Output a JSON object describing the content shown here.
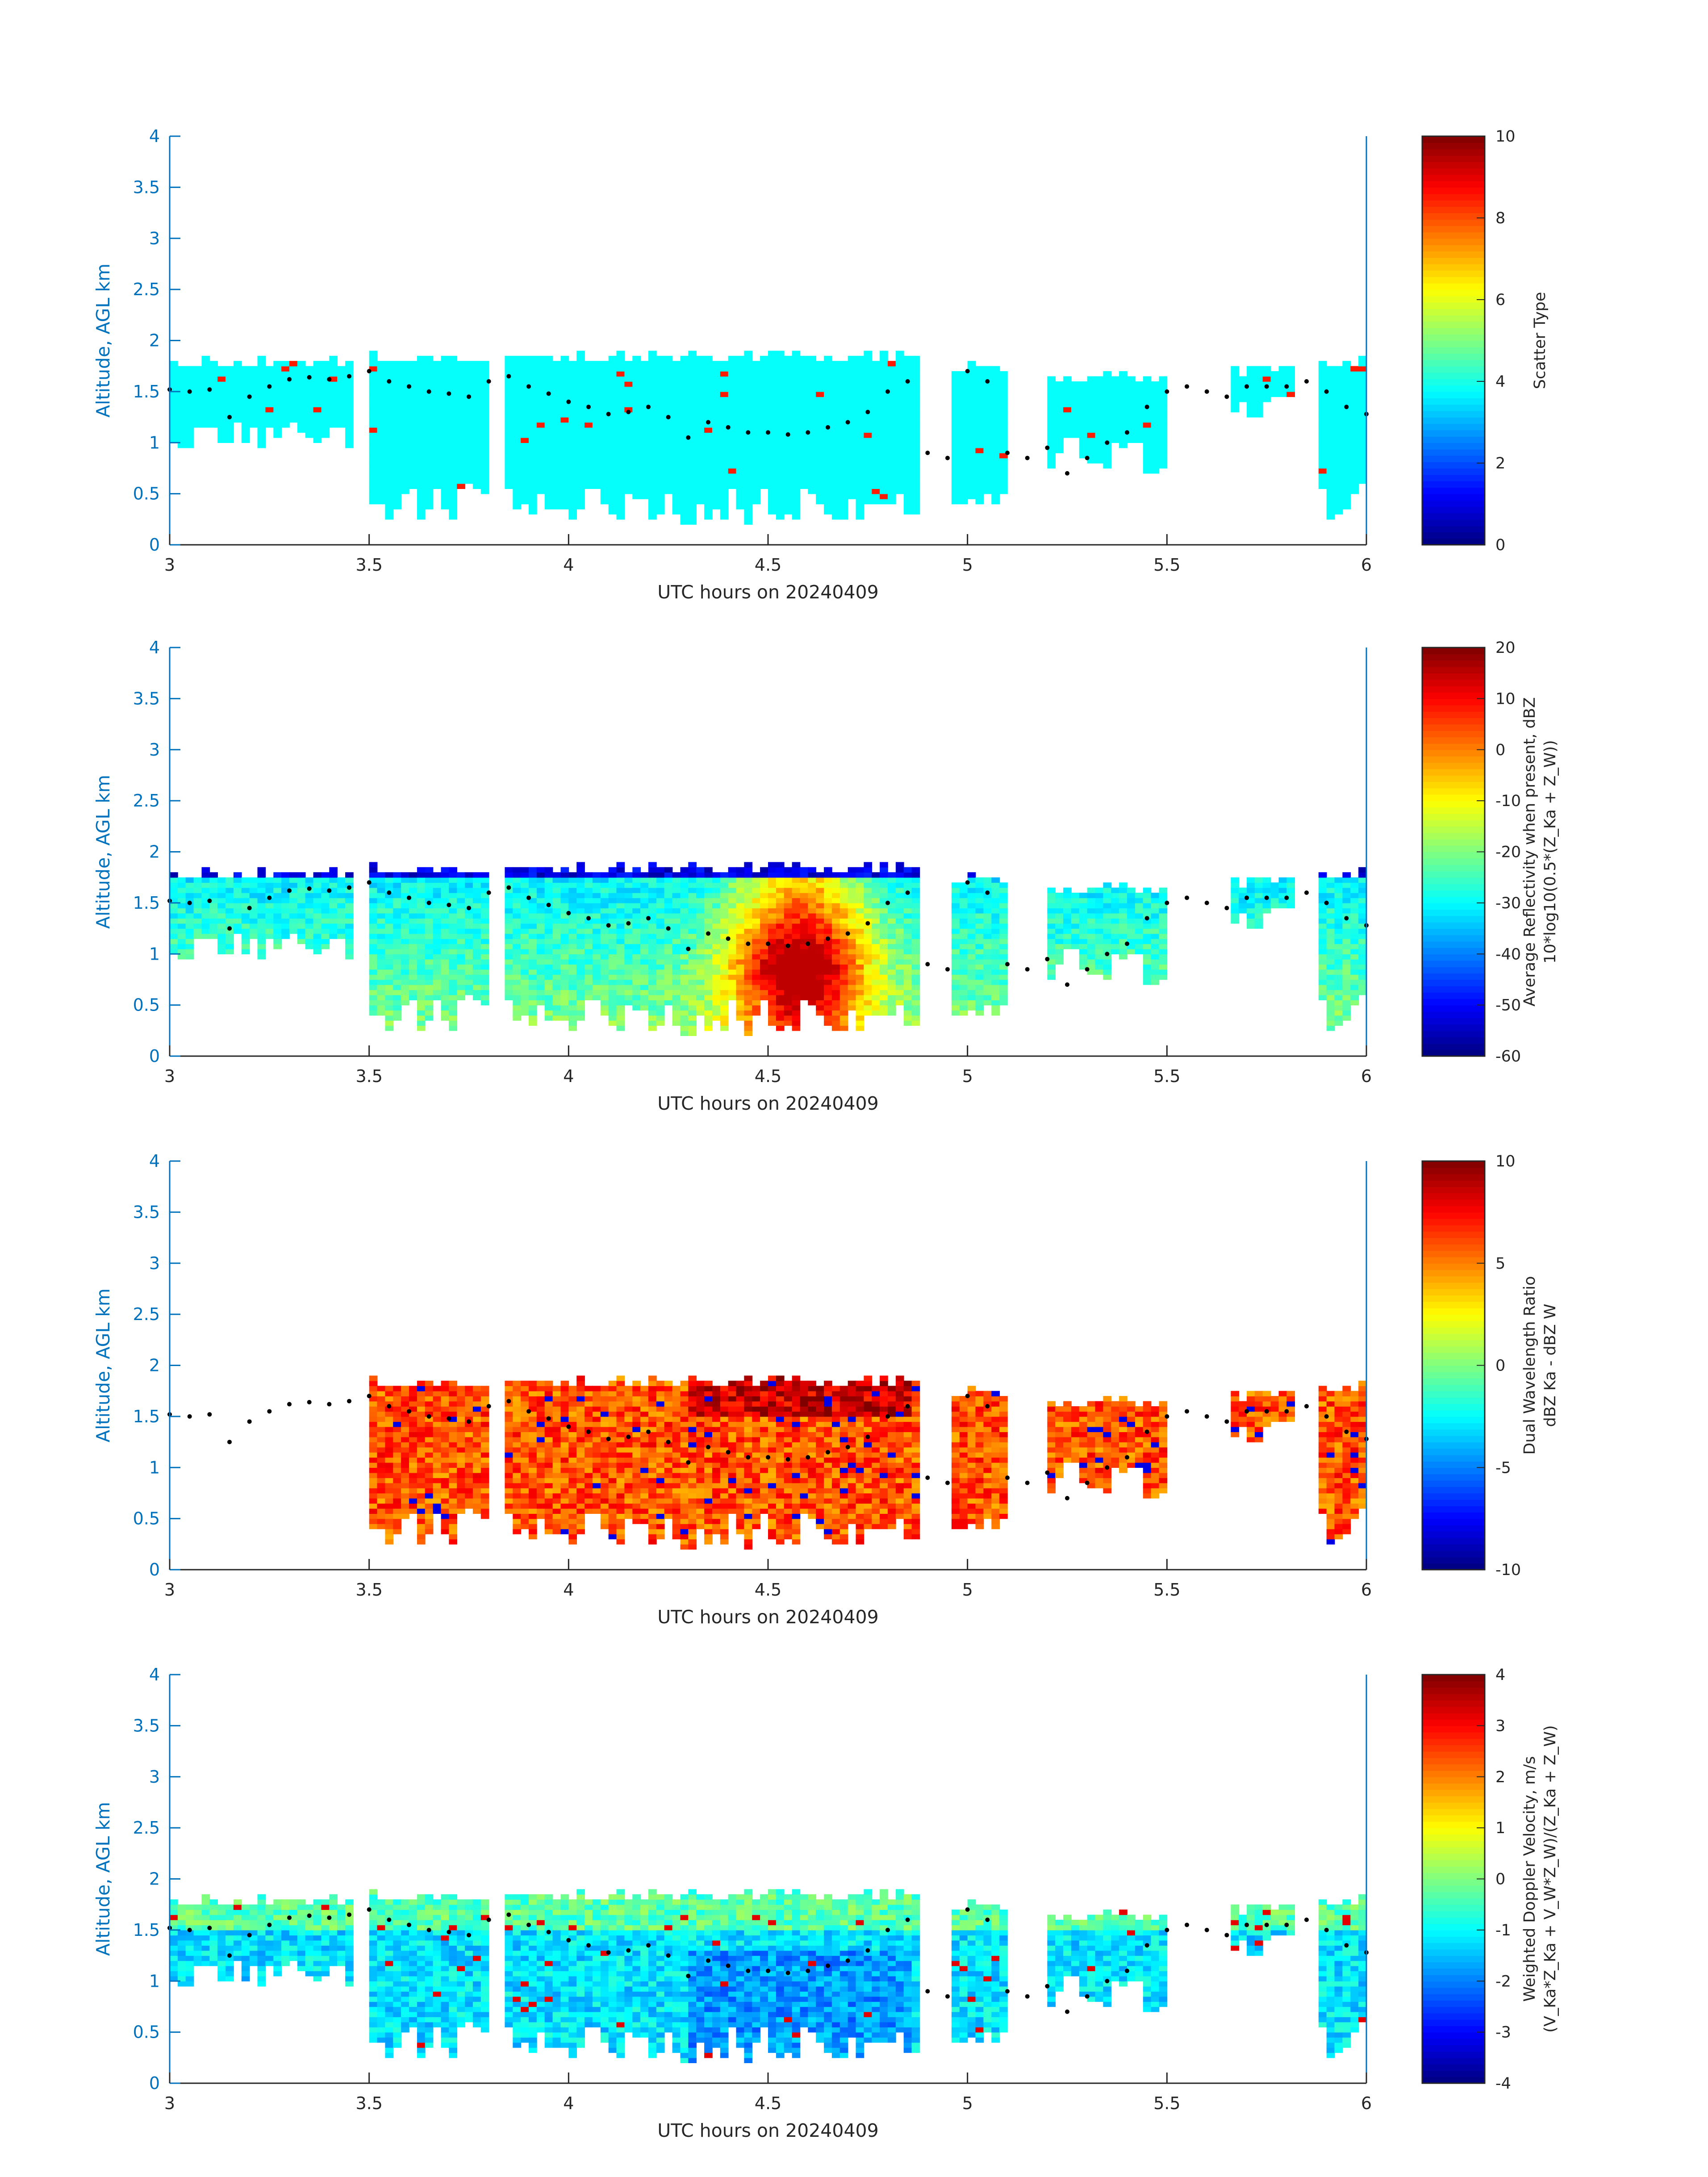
{
  "figure": {
    "x_axis_label": "UTC hours on 20240409"
  },
  "chart_data": [
    {
      "type": "heatmap",
      "name": "scatter-type",
      "xlabel": "UTC hours on 20240409",
      "ylabel": "Altitude, AGL km",
      "xlim": [
        3,
        6
      ],
      "ylim": [
        0,
        4
      ],
      "xticks": [
        "3",
        "3.5",
        "4",
        "4.5",
        "5",
        "5.5",
        "6"
      ],
      "yticks": [
        "0",
        "0.5",
        "1",
        "1.5",
        "2",
        "2.5",
        "3",
        "3.5",
        "4"
      ],
      "colorbar": {
        "label_lines": [
          "Scatter Type"
        ],
        "range": [
          0,
          10
        ],
        "ticks": [
          "0",
          "2",
          "4",
          "6",
          "8",
          "10"
        ]
      },
      "dominant_value": 3.8
    },
    {
      "type": "heatmap",
      "name": "average-reflectivity",
      "xlabel": "UTC hours on 20240409",
      "ylabel": "Altitude, AGL km",
      "xlim": [
        3,
        6
      ],
      "ylim": [
        0,
        4
      ],
      "xticks": [
        "3",
        "3.5",
        "4",
        "4.5",
        "5",
        "5.5",
        "6"
      ],
      "yticks": [
        "0",
        "0.5",
        "1",
        "1.5",
        "2",
        "2.5",
        "3",
        "3.5",
        "4"
      ],
      "colorbar": {
        "label_lines": [
          "Average Reflectivity when present, dBZ",
          "10*log10(0.5*(Z_Ka + Z_W))"
        ],
        "range": [
          -60,
          20
        ],
        "ticks": [
          "-60",
          "-50",
          "-40",
          "-30",
          "-20",
          "-10",
          "0",
          "10",
          "20"
        ]
      },
      "core_peak": 15
    },
    {
      "type": "heatmap",
      "name": "dual-wavelength-ratio",
      "xlabel": "UTC hours on 20240409",
      "ylabel": "Altitude, AGL km",
      "xlim": [
        3,
        6
      ],
      "ylim": [
        0,
        4
      ],
      "xticks": [
        "3",
        "3.5",
        "4",
        "4.5",
        "5",
        "5.5",
        "6"
      ],
      "yticks": [
        "0",
        "0.5",
        "1",
        "1.5",
        "2",
        "2.5",
        "3",
        "3.5",
        "4"
      ],
      "colorbar": {
        "label_lines": [
          "Dual Wavelength Ratio",
          "dBZ Ka - dBZ W"
        ],
        "range": [
          -10,
          10
        ],
        "ticks": [
          "-10",
          "-5",
          "0",
          "5",
          "10"
        ]
      },
      "typical_value": 6
    },
    {
      "type": "heatmap",
      "name": "weighted-doppler-velocity",
      "xlabel": "UTC hours on 20240409",
      "ylabel": "Altitude, AGL km",
      "xlim": [
        3,
        6
      ],
      "ylim": [
        0,
        4
      ],
      "xticks": [
        "3",
        "3.5",
        "4",
        "4.5",
        "5",
        "5.5",
        "6"
      ],
      "yticks": [
        "0",
        "0.5",
        "1",
        "1.5",
        "2",
        "2.5",
        "3",
        "3.5",
        "4"
      ],
      "colorbar": {
        "label_lines": [
          "Weighted Doppler Velocity, m/s",
          "(V_Ka*Z_Ka + V_W*Z_W)/(Z_Ka + Z_W)"
        ],
        "range": [
          -4,
          4
        ],
        "ticks": [
          "-4",
          "-3",
          "-2",
          "-1",
          "0",
          "1",
          "2",
          "3",
          "4"
        ]
      },
      "typical_value": -1.2
    }
  ],
  "cloud_regions": [
    {
      "x0": 3.0,
      "x1": 3.45,
      "top": 1.85,
      "base": 0.9
    },
    {
      "x0": 3.5,
      "x1": 3.81,
      "top": 1.9,
      "base": 0.25
    },
    {
      "x0": 3.84,
      "x1": 4.88,
      "top": 1.9,
      "base": 0.2
    },
    {
      "x0": 4.95,
      "x1": 5.1,
      "top": 1.8,
      "base": 0.3
    },
    {
      "x0": 5.2,
      "x1": 5.5,
      "top": 1.7,
      "base": 0.7
    },
    {
      "x0": 5.65,
      "x1": 5.82,
      "top": 1.75,
      "base": 1.2
    },
    {
      "x0": 5.88,
      "x1": 6.0,
      "top": 1.85,
      "base": 0.25
    }
  ],
  "cloud_base_markers": {
    "x": [
      3.0,
      3.05,
      3.1,
      3.15,
      3.2,
      3.25,
      3.3,
      3.35,
      3.4,
      3.45,
      3.5,
      3.55,
      3.6,
      3.65,
      3.7,
      3.75,
      3.8,
      3.85,
      3.9,
      3.95,
      4.0,
      4.05,
      4.1,
      4.15,
      4.2,
      4.25,
      4.3,
      4.35,
      4.4,
      4.45,
      4.5,
      4.55,
      4.6,
      4.65,
      4.7,
      4.75,
      4.8,
      4.85,
      4.9,
      4.95,
      5.0,
      5.05,
      5.1,
      5.15,
      5.2,
      5.25,
      5.3,
      5.35,
      5.4,
      5.45,
      5.5,
      5.55,
      5.6,
      5.65,
      5.7,
      5.75,
      5.8,
      5.85,
      5.9,
      5.95,
      6.0
    ],
    "y": [
      1.52,
      1.5,
      1.52,
      1.25,
      1.45,
      1.55,
      1.62,
      1.64,
      1.62,
      1.65,
      1.7,
      1.6,
      1.55,
      1.5,
      1.48,
      1.45,
      1.6,
      1.65,
      1.55,
      1.48,
      1.4,
      1.35,
      1.28,
      1.3,
      1.35,
      1.25,
      1.05,
      1.2,
      1.15,
      1.1,
      1.1,
      1.08,
      1.1,
      1.15,
      1.2,
      1.3,
      1.5,
      1.6,
      0.9,
      0.85,
      1.7,
      1.6,
      0.9,
      0.85,
      0.95,
      0.7,
      0.85,
      1.0,
      1.1,
      1.35,
      1.5,
      1.55,
      1.5,
      1.45,
      1.55,
      1.55,
      1.55,
      1.6,
      1.5,
      1.35,
      1.28
    ]
  }
}
